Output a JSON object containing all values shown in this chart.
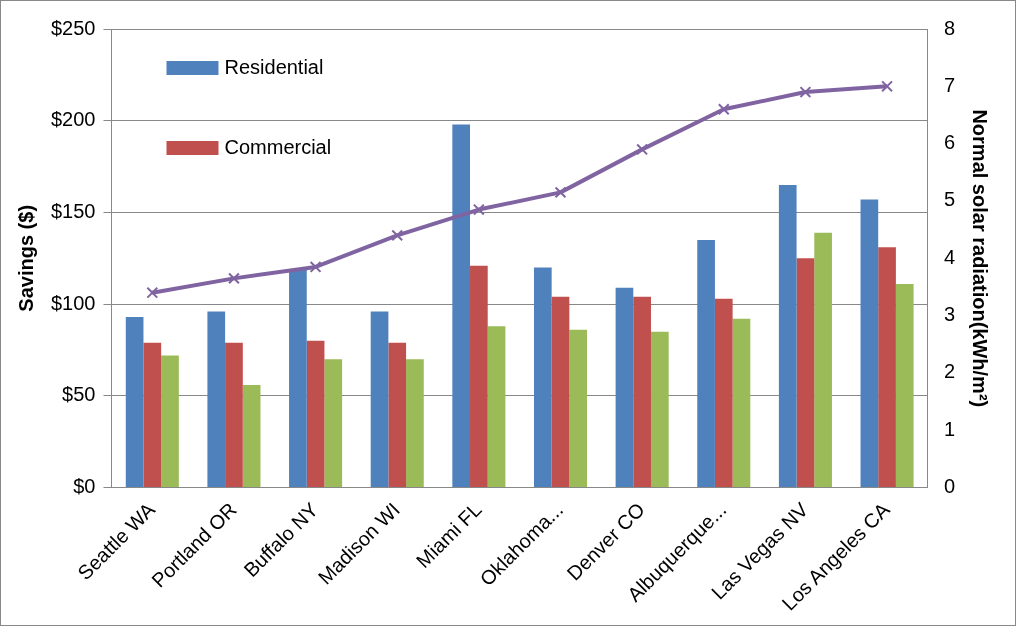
{
  "chart_data": {
    "type": "bar",
    "ylabel": "Savings ($)",
    "y2label": "Normal solar radiation(kWh/m²)",
    "categories": [
      "Seattle WA",
      "Portland OR",
      "Buffalo NY",
      "Madison WI",
      "Miami FL",
      "Oklahoma...",
      "Denver CO",
      "Albuquerque...",
      "Las Vegas NV",
      "Los Angeles CA"
    ],
    "series": [
      {
        "name": "Residential",
        "color": "#4f81bd",
        "values": [
          93,
          96,
          119,
          96,
          198,
          120,
          109,
          135,
          165,
          157
        ]
      },
      {
        "name": "Commercial",
        "color": "#c0504d",
        "values": [
          79,
          79,
          80,
          79,
          121,
          104,
          104,
          103,
          125,
          131
        ]
      },
      {
        "color": "#9bbb59",
        "values": [
          72,
          56,
          70,
          70,
          88,
          86,
          85,
          92,
          139,
          111
        ]
      },
      {
        "type": "line",
        "axis": "y2",
        "color": "#8064a2",
        "marker": "cross",
        "values": [
          3.4,
          3.65,
          3.85,
          4.4,
          4.85,
          5.15,
          5.9,
          6.6,
          6.9,
          7.0
        ]
      }
    ],
    "ylim": [
      0,
      250
    ],
    "yticks": [
      {
        "value": 0,
        "label": "$0"
      },
      {
        "value": 50,
        "label": "$50"
      },
      {
        "value": 100,
        "label": "$100"
      },
      {
        "value": 150,
        "label": "$150"
      },
      {
        "value": 200,
        "label": "$200"
      },
      {
        "value": 250,
        "label": "$250"
      }
    ],
    "y2lim": [
      0,
      8
    ],
    "y2ticks": [
      0,
      1,
      2,
      3,
      4,
      5,
      6,
      7,
      8
    ],
    "grid": "y",
    "legend": "top left"
  }
}
